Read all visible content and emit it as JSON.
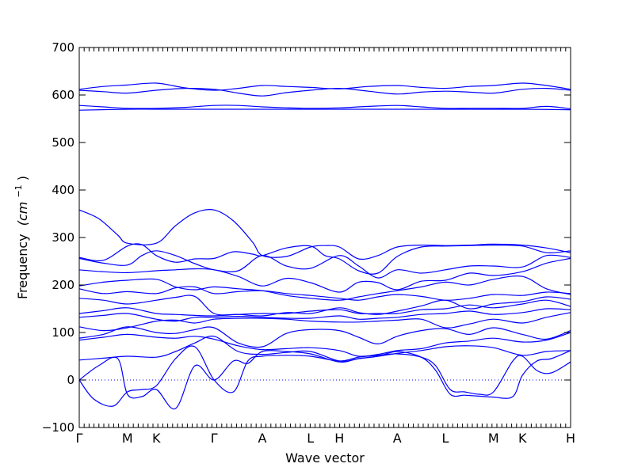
{
  "chart_data": {
    "type": "line",
    "xlabel": "Wave vector",
    "ylabel": "Frequency",
    "ylabel_unit": "(cm",
    "ylabel_unit_sup": "−1",
    "ylabel_unit_close": ")",
    "ylim": [
      -100,
      700
    ],
    "yticks": [
      -100,
      0,
      100,
      200,
      300,
      400,
      500,
      600,
      700
    ],
    "grid": false,
    "zero_line": "dotted",
    "color": "#0000ff",
    "high_symmetry_points": [
      {
        "label": "Γ",
        "pos": 0.0
      },
      {
        "label": "M",
        "pos": 1.0
      },
      {
        "label": "K",
        "pos": 1.6
      },
      {
        "label": "Γ",
        "pos": 2.8
      },
      {
        "label": "A",
        "pos": 3.8
      },
      {
        "label": "L",
        "pos": 4.8
      },
      {
        "label": "H",
        "pos": 5.4
      },
      {
        "label": "A",
        "pos": 6.6
      },
      {
        "label": "L",
        "pos": 7.6
      },
      {
        "label": "M",
        "pos": 8.6
      },
      {
        "label": "K",
        "pos": 9.2
      },
      {
        "label": "H",
        "pos": 10.2
      }
    ],
    "series": [
      {
        "x": [
          0,
          0.5,
          1.0,
          1.6,
          2.2,
          2.8,
          3.3,
          3.8,
          4.3,
          4.8,
          5.4,
          6.0,
          6.6,
          7.1,
          7.6,
          8.1,
          8.6,
          9.2,
          9.7,
          10.2
        ],
        "y": [
          612,
          618,
          621,
          625,
          615,
          610,
          614,
          620,
          618,
          616,
          613,
          618,
          620,
          616,
          614,
          618,
          620,
          625,
          620,
          612
        ]
      },
      {
        "x": [
          0,
          0.5,
          1.0,
          1.6,
          2.2,
          2.8,
          3.3,
          3.8,
          4.3,
          4.8,
          5.4,
          6.0,
          6.6,
          7.1,
          7.6,
          8.1,
          8.6,
          9.2,
          9.7,
          10.2
        ],
        "y": [
          610,
          607,
          604,
          610,
          614,
          612,
          604,
          598,
          605,
          610,
          614,
          608,
          602,
          606,
          608,
          606,
          604,
          612,
          614,
          610
        ]
      },
      {
        "x": [
          0,
          0.5,
          1.0,
          1.6,
          2.2,
          2.8,
          3.3,
          3.8,
          4.3,
          4.8,
          5.4,
          6.0,
          6.6,
          7.1,
          7.6,
          8.1,
          8.6,
          9.2,
          9.7,
          10.2
        ],
        "y": [
          578,
          575,
          572,
          572,
          574,
          578,
          578,
          575,
          573,
          572,
          573,
          576,
          578,
          575,
          572,
          572,
          572,
          572,
          576,
          571
        ]
      },
      {
        "x": [
          0,
          1.0,
          1.6,
          2.8,
          3.8,
          4.8,
          5.4,
          6.6,
          7.6,
          8.6,
          9.2,
          10.2
        ],
        "y": [
          568,
          570,
          570,
          570,
          570,
          570,
          570,
          570,
          570,
          570,
          570,
          569
        ]
      },
      {
        "x": [
          0,
          0.4,
          0.8,
          1.0,
          1.6,
          2.0,
          2.4,
          2.8,
          3.2,
          3.6,
          3.8,
          4.3,
          4.8,
          5.1,
          5.4,
          5.8,
          6.2,
          6.6,
          7.1,
          7.6,
          8.1,
          8.6,
          9.2,
          9.7,
          10.2
        ],
        "y": [
          358,
          340,
          305,
          288,
          288,
          325,
          352,
          358,
          335,
          290,
          262,
          260,
          280,
          283,
          280,
          255,
          262,
          280,
          284,
          283,
          284,
          286,
          284,
          278,
          268
        ]
      },
      {
        "x": [
          0,
          0.5,
          1.0,
          1.3,
          1.6,
          2.0,
          2.4,
          2.8,
          3.2,
          3.6,
          3.8,
          4.3,
          4.8,
          5.1,
          5.4,
          5.8,
          6.2,
          6.6,
          7.1,
          7.6,
          8.1,
          8.6,
          9.2,
          9.7,
          10.2
        ],
        "y": [
          258,
          252,
          282,
          285,
          262,
          248,
          255,
          256,
          270,
          265,
          262,
          278,
          282,
          262,
          255,
          230,
          225,
          260,
          280,
          282,
          283,
          284,
          282,
          268,
          272
        ]
      },
      {
        "x": [
          0,
          0.5,
          1.0,
          1.3,
          1.6,
          2.0,
          2.4,
          2.8,
          3.3,
          3.8,
          4.3,
          4.8,
          5.4,
          5.8,
          6.2,
          6.6,
          7.1,
          7.6,
          8.1,
          8.6,
          9.2,
          9.7,
          10.2
        ],
        "y": [
          256,
          246,
          242,
          262,
          272,
          262,
          245,
          232,
          230,
          262,
          240,
          235,
          262,
          240,
          215,
          232,
          225,
          232,
          240,
          240,
          238,
          262,
          258
        ]
      },
      {
        "x": [
          0,
          0.5,
          1.0,
          1.6,
          2.0,
          2.4,
          2.8,
          3.3,
          3.8,
          4.3,
          4.8,
          5.4,
          5.8,
          6.2,
          6.6,
          7.1,
          7.6,
          8.1,
          8.6,
          9.2,
          9.7,
          10.2
        ],
        "y": [
          232,
          228,
          226,
          230,
          232,
          234,
          232,
          218,
          198,
          214,
          205,
          185,
          206,
          205,
          190,
          208,
          210,
          225,
          220,
          228,
          246,
          256
        ]
      },
      {
        "x": [
          0,
          0.5,
          1.0,
          1.6,
          2.0,
          2.4,
          2.8,
          3.3,
          3.8,
          4.3,
          4.8,
          5.4,
          5.8,
          6.2,
          6.6,
          7.1,
          7.6,
          8.1,
          8.6,
          9.2,
          9.7,
          10.2
        ],
        "y": [
          198,
          206,
          210,
          212,
          196,
          190,
          196,
          192,
          188,
          178,
          172,
          168,
          175,
          182,
          188,
          196,
          206,
          200,
          212,
          218,
          192,
          180
        ]
      },
      {
        "x": [
          0,
          0.5,
          1.0,
          1.6,
          2.0,
          2.4,
          2.8,
          3.3,
          3.8,
          4.3,
          4.8,
          5.4,
          5.8,
          6.2,
          6.6,
          7.1,
          7.6,
          8.1,
          8.6,
          9.2,
          9.7,
          10.2
        ],
        "y": [
          192,
          182,
          186,
          182,
          194,
          196,
          182,
          186,
          188,
          182,
          178,
          172,
          168,
          175,
          180,
          176,
          168,
          172,
          180,
          178,
          185,
          182
        ]
      },
      {
        "x": [
          0,
          0.5,
          1.0,
          1.6,
          2.0,
          2.4,
          2.8,
          3.3,
          3.8,
          4.3,
          4.8,
          5.4,
          5.8,
          6.2,
          6.6,
          7.1,
          7.6,
          8.1,
          8.6,
          9.2,
          9.7,
          10.2
        ],
        "y": [
          172,
          168,
          160,
          168,
          174,
          176,
          140,
          138,
          135,
          142,
          140,
          152,
          142,
          138,
          145,
          156,
          168,
          150,
          160,
          165,
          175,
          170
        ]
      },
      {
        "x": [
          0,
          0.5,
          1.0,
          1.6,
          2.0,
          2.4,
          2.8,
          3.3,
          3.8,
          4.3,
          4.8,
          5.4,
          5.8,
          6.2,
          6.6,
          7.1,
          7.6,
          8.1,
          8.6,
          9.2,
          9.7,
          10.2
        ],
        "y": [
          140,
          146,
          152,
          140,
          138,
          136,
          135,
          138,
          140,
          140,
          145,
          148,
          140,
          140,
          140,
          148,
          150,
          158,
          152,
          160,
          168,
          155
        ]
      },
      {
        "x": [
          0,
          0.5,
          1.0,
          1.6,
          2.0,
          2.4,
          2.8,
          3.3,
          3.8,
          4.3,
          4.8,
          5.4,
          5.8,
          6.2,
          6.6,
          7.1,
          7.6,
          8.1,
          8.6,
          9.2,
          9.7,
          10.2
        ],
        "y": [
          132,
          136,
          140,
          128,
          124,
          132,
          132,
          134,
          132,
          130,
          130,
          135,
          128,
          130,
          132,
          138,
          140,
          145,
          138,
          142,
          150,
          148
        ]
      },
      {
        "x": [
          0,
          0.5,
          1.0,
          1.6,
          2.0,
          2.4,
          2.8,
          3.3,
          3.8,
          4.3,
          4.8,
          5.4,
          5.8,
          6.2,
          6.6,
          7.1,
          7.6,
          8.1,
          8.6,
          9.2,
          9.7,
          10.2
        ],
        "y": [
          112,
          104,
          110,
          124,
          126,
          120,
          128,
          130,
          130,
          128,
          124,
          122,
          122,
          124,
          126,
          128,
          110,
          118,
          128,
          120,
          132,
          142
        ]
      },
      {
        "x": [
          0,
          0.5,
          1.0,
          1.6,
          2.0,
          2.4,
          2.8,
          3.3,
          3.8,
          4.3,
          4.8,
          5.4,
          5.8,
          6.2,
          6.6,
          7.1,
          7.6,
          8.1,
          8.6,
          9.2,
          9.7,
          10.2
        ],
        "y": [
          88,
          96,
          112,
          100,
          98,
          106,
          110,
          78,
          70,
          98,
          106,
          104,
          90,
          76,
          92,
          104,
          108,
          96,
          110,
          96,
          86,
          104
        ]
      },
      {
        "x": [
          0,
          0.5,
          1.0,
          1.6,
          2.0,
          2.4,
          2.8,
          3.3,
          3.8,
          4.3,
          4.8,
          5.4,
          5.8,
          6.2,
          6.6,
          7.1,
          7.6,
          8.1,
          8.6,
          9.2,
          9.7,
          10.2
        ],
        "y": [
          84,
          90,
          96,
          90,
          88,
          92,
          86,
          72,
          64,
          66,
          68,
          62,
          50,
          54,
          62,
          66,
          78,
          82,
          88,
          80,
          84,
          100
        ]
      },
      {
        "x": [
          0,
          0.5,
          1.0,
          1.6,
          2.0,
          2.4,
          2.8,
          3.3,
          3.8,
          4.3,
          4.8,
          5.4,
          5.8,
          6.2,
          6.6,
          7.1,
          7.6,
          8.1,
          8.6,
          9.2,
          9.7,
          10.2
        ],
        "y": [
          42,
          46,
          50,
          48,
          60,
          78,
          92,
          60,
          54,
          58,
          60,
          40,
          45,
          50,
          56,
          62,
          70,
          72,
          68,
          52,
          60,
          62
        ]
      },
      {
        "x": [
          0,
          0.3,
          0.7,
          1.0,
          1.3,
          1.6,
          2.0,
          2.4,
          2.8,
          3.2,
          3.5,
          3.8,
          4.3,
          4.8,
          5.4,
          5.8,
          6.2,
          6.6,
          7.1,
          7.4,
          7.7,
          8.0,
          8.3,
          8.6,
          9.0,
          9.2,
          9.5,
          9.8,
          10.2
        ],
        "y": [
          0,
          -40,
          -55,
          -25,
          -20,
          -12,
          45,
          70,
          0,
          -25,
          40,
          50,
          52,
          50,
          40,
          48,
          52,
          55,
          48,
          30,
          -20,
          -25,
          -30,
          -25,
          40,
          50,
          20,
          15,
          38
        ]
      },
      {
        "x": [
          0,
          0.4,
          0.8,
          1.0,
          1.3,
          1.6,
          2.0,
          2.4,
          2.8,
          3.2,
          3.5,
          3.8,
          4.3,
          4.8,
          5.4,
          5.8,
          6.2,
          6.6,
          7.1,
          7.4,
          7.7,
          8.0,
          8.3,
          8.6,
          9.0,
          9.2,
          9.5,
          9.8,
          10.2
        ],
        "y": [
          0,
          30,
          45,
          -30,
          -35,
          -20,
          -60,
          30,
          0,
          40,
          35,
          60,
          60,
          55,
          38,
          45,
          50,
          60,
          48,
          20,
          -30,
          -32,
          -34,
          -36,
          -35,
          10,
          40,
          45,
          62
        ]
      }
    ]
  }
}
